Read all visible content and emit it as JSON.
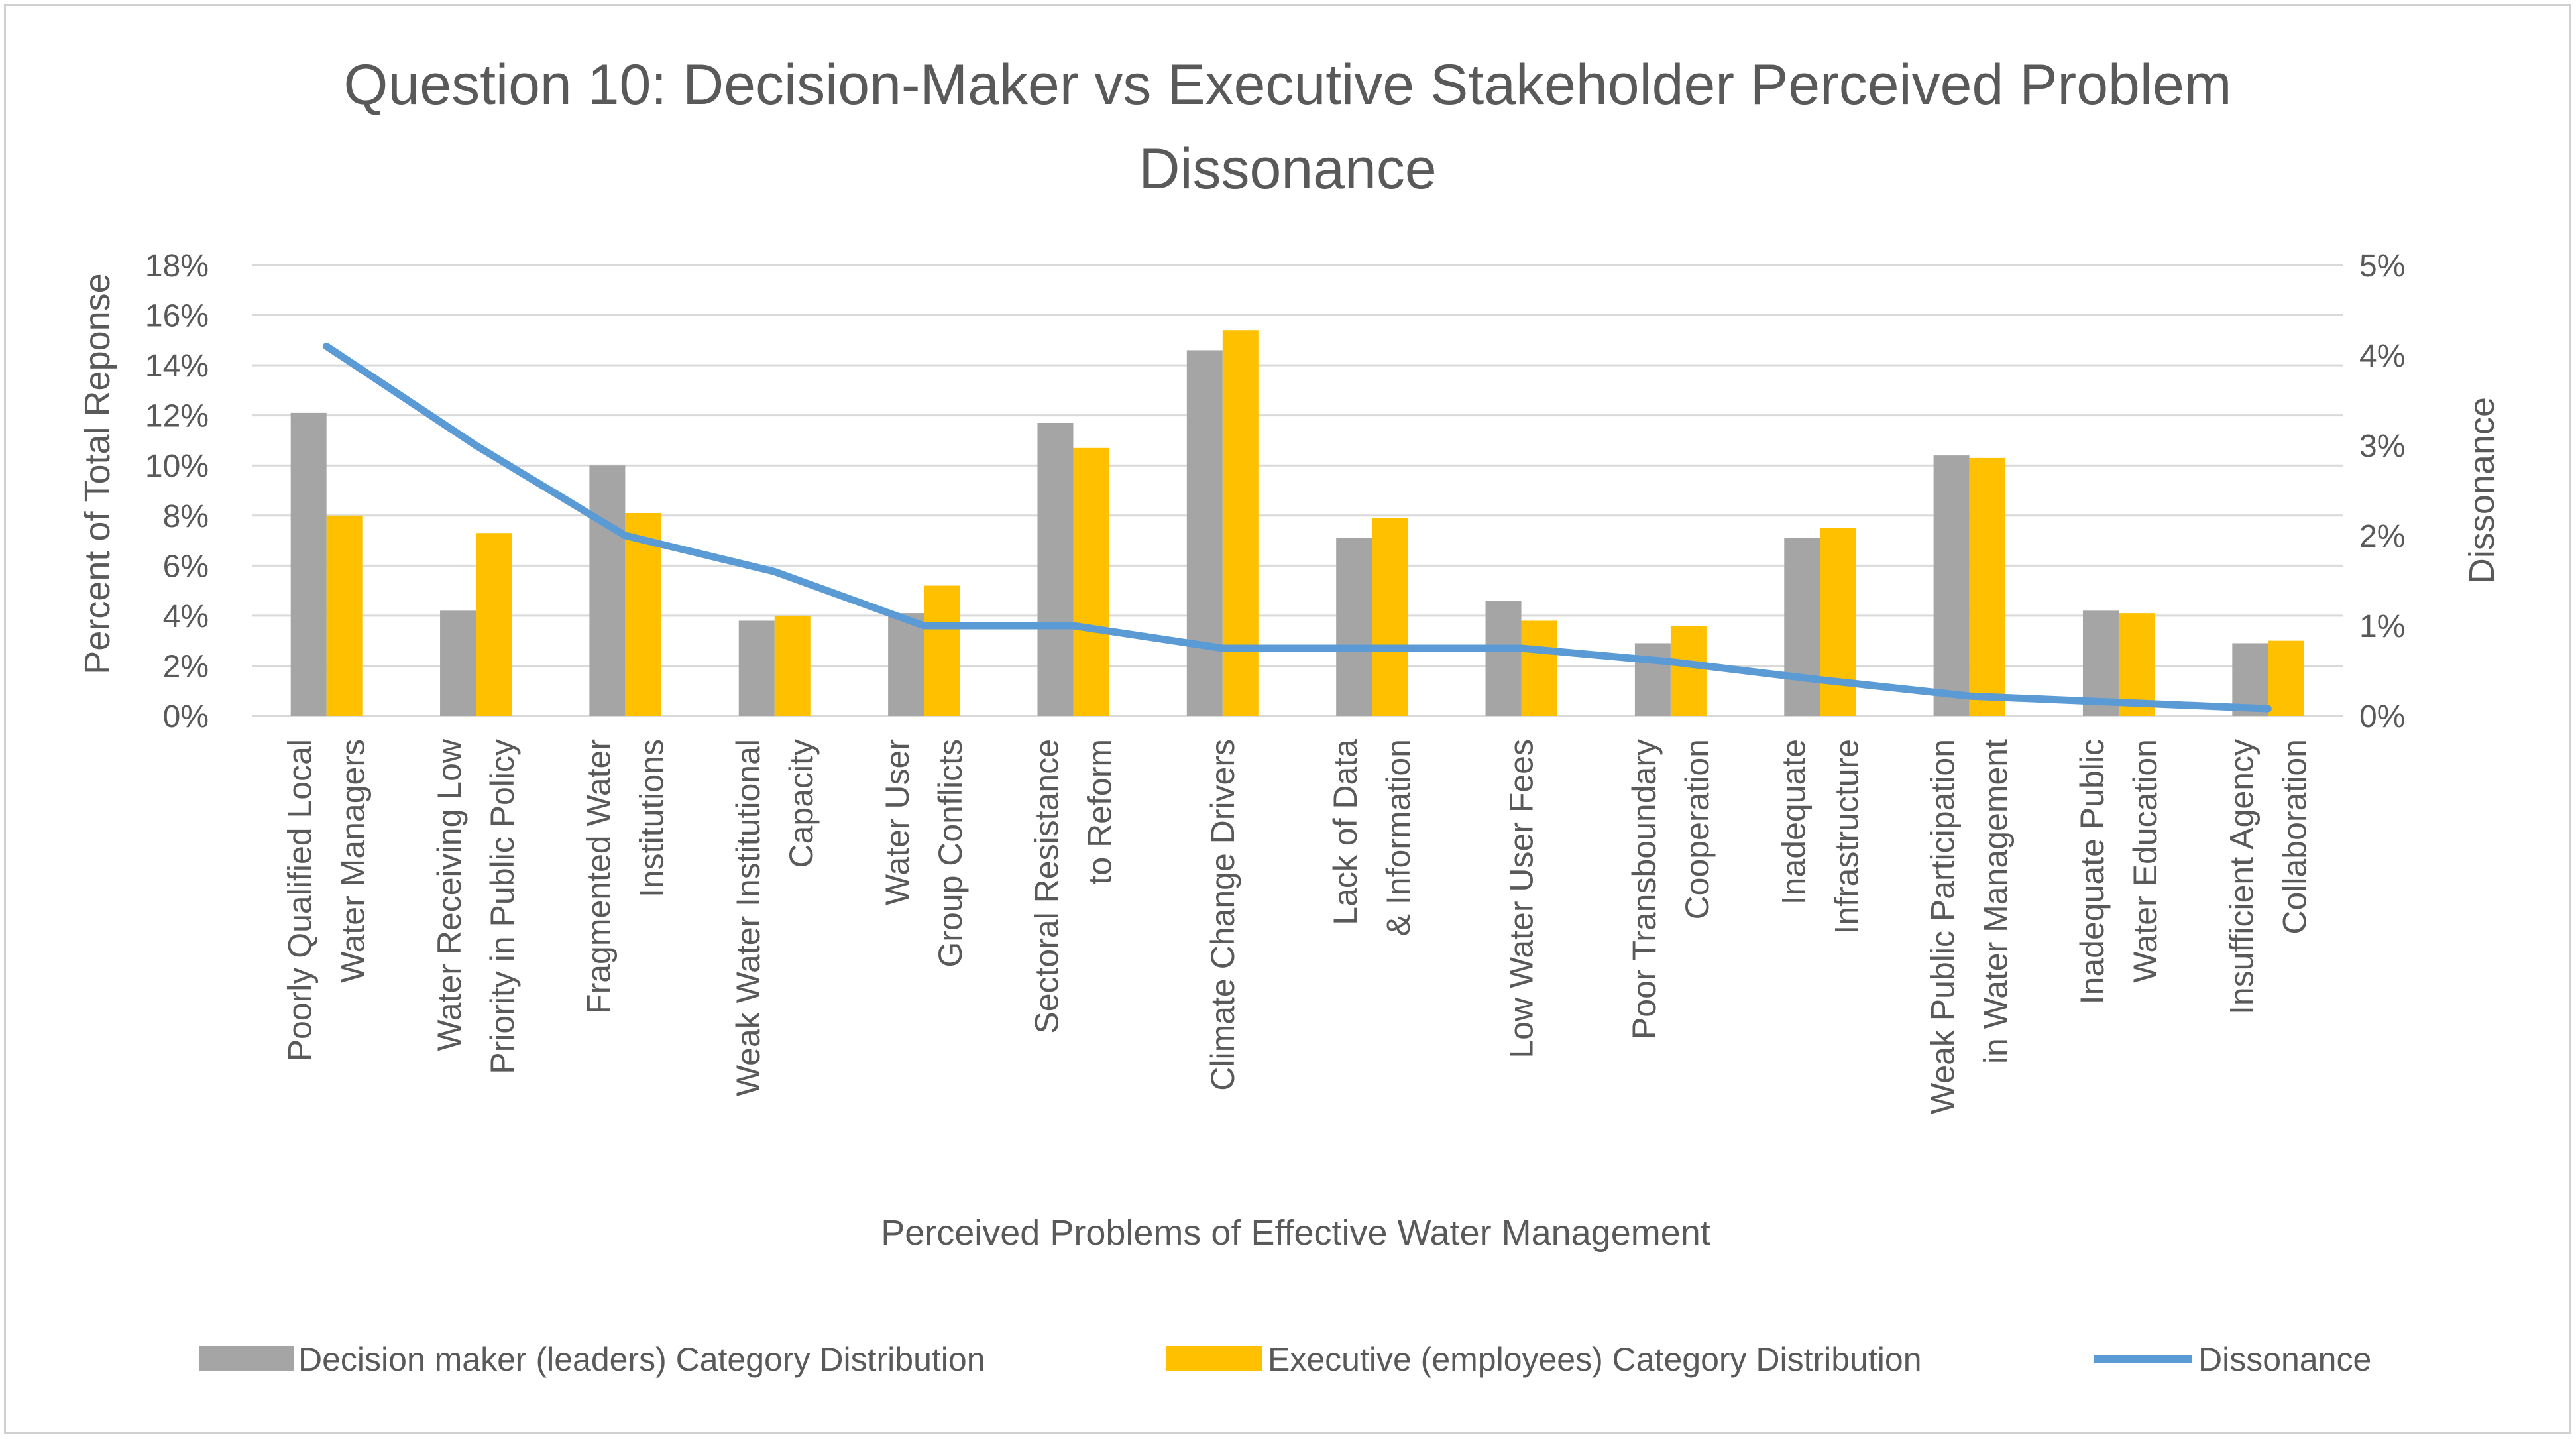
{
  "chart_data": {
    "type": "bar",
    "title": "Question 10: Decision-Maker vs Executive Stakeholder Perceived Problem Dissonance",
    "title_lines": [
      "Question 10: Decision-Maker vs Executive Stakeholder Perceived Problem",
      "Dissonance"
    ],
    "xlabel": "Perceived Problems of Effective Water Management",
    "ylabel": "Percent of Total Reponse",
    "y2label": "Dissonance",
    "ylim": [
      0,
      18
    ],
    "y2lim": [
      0,
      5
    ],
    "y_ticks": [
      "0%",
      "2%",
      "4%",
      "6%",
      "8%",
      "10%",
      "12%",
      "14%",
      "16%",
      "18%"
    ],
    "y2_ticks": [
      "0%",
      "1%",
      "2%",
      "3%",
      "4%",
      "5%"
    ],
    "grid": true,
    "legend_position": "bottom",
    "categories": [
      [
        "Poorly Qualified Local",
        "Water Managers"
      ],
      [
        "Water Receiving Low",
        "Priority in Public Policy"
      ],
      [
        "Fragmented Water",
        "Institutions"
      ],
      [
        "Weak Water Institutional",
        "Capacity"
      ],
      [
        "Water User",
        "Group Conflicts"
      ],
      [
        "Sectoral Resistance",
        "to Reform"
      ],
      [
        "Climate Change Drivers"
      ],
      [
        "Lack of Data",
        "& Information"
      ],
      [
        "Low Water User Fees"
      ],
      [
        "Poor Transboundary",
        "Cooperation"
      ],
      [
        "Inadequate",
        "Infrastructure"
      ],
      [
        "Weak Public Participation",
        "in Water Management"
      ],
      [
        "Inadequate Public",
        "Water Education"
      ],
      [
        "Insufficient Agency",
        "Collaboration"
      ]
    ],
    "series": [
      {
        "name": "Decision maker (leaders) Category Distribution",
        "type": "bar",
        "axis": "left",
        "color": "#a5a5a5",
        "values": [
          12.1,
          4.2,
          10.0,
          3.8,
          4.1,
          11.7,
          14.6,
          7.1,
          4.6,
          2.9,
          7.1,
          10.4,
          4.2,
          2.9
        ]
      },
      {
        "name": "Executive (employees) Category Distribution",
        "type": "bar",
        "axis": "left",
        "color": "#ffc000",
        "values": [
          8.0,
          7.3,
          8.1,
          4.0,
          5.2,
          10.7,
          15.4,
          7.9,
          3.8,
          3.6,
          7.5,
          10.3,
          4.1,
          3.0
        ]
      },
      {
        "name": "Dissonance",
        "type": "line",
        "axis": "right",
        "color": "#5b9bd5",
        "values": [
          4.1,
          3.0,
          2.0,
          1.6,
          1.0,
          1.0,
          0.75,
          0.75,
          0.75,
          0.6,
          0.4,
          0.22,
          0.15,
          0.08
        ]
      }
    ]
  }
}
